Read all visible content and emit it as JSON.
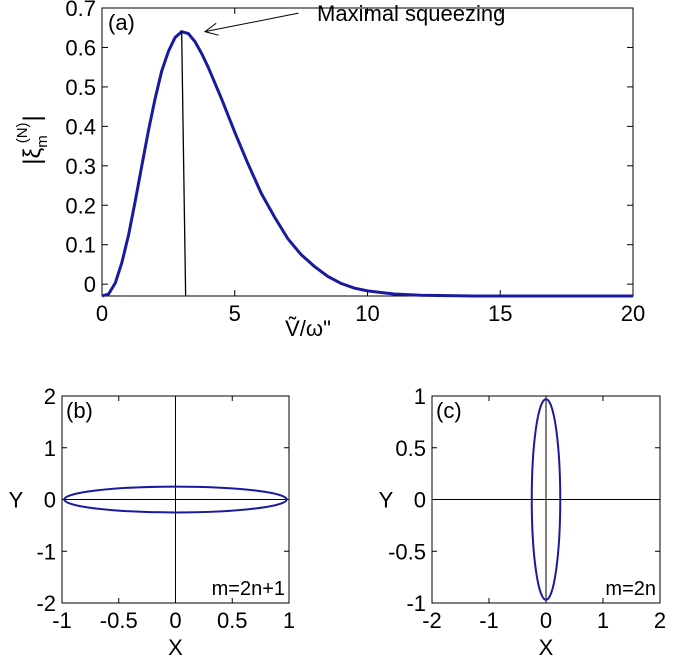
{
  "colors": {
    "curve": "#1a1a9e",
    "axis": "#000000",
    "background": "#ffffff"
  },
  "chart_data": [
    {
      "id": "a",
      "type": "line",
      "panel_label": "(a)",
      "xlabel": "Ṽ/ω\"",
      "ylabel_main": "|ξ",
      "ylabel_sup": "(N)",
      "ylabel_sub": "m",
      "ylabel_close": "|",
      "xlim": [
        0,
        20
      ],
      "ylim": [
        -0.03,
        0.7
      ],
      "xticks": [
        0,
        5,
        10,
        15,
        20
      ],
      "xtick_labels": [
        "0",
        "5",
        "10",
        "15",
        "20"
      ],
      "yticks": [
        0,
        0.1,
        0.2,
        0.3,
        0.4,
        0.5,
        0.6,
        0.7
      ],
      "ytick_labels": [
        "0",
        "0.1",
        "0.2",
        "0.3",
        "0.4",
        "0.5",
        "0.6",
        "0.7"
      ],
      "series": [
        {
          "x": [
            0,
            0.25,
            0.5,
            0.75,
            1.0,
            1.25,
            1.5,
            1.75,
            2.0,
            2.25,
            2.5,
            2.75,
            3.0,
            3.25,
            3.5,
            3.75,
            4.0,
            4.5,
            5.0,
            5.5,
            6.0,
            6.5,
            7.0,
            7.5,
            8.0,
            8.5,
            9.0,
            9.5,
            10,
            11,
            12,
            13,
            14,
            15,
            16,
            17,
            18,
            19,
            20
          ],
          "y": [
            -0.03,
            -0.025,
            0.003,
            0.055,
            0.125,
            0.21,
            0.3,
            0.39,
            0.47,
            0.54,
            0.59,
            0.625,
            0.64,
            0.635,
            0.615,
            0.585,
            0.55,
            0.47,
            0.385,
            0.305,
            0.23,
            0.17,
            0.115,
            0.075,
            0.045,
            0.02,
            0.002,
            -0.01,
            -0.017,
            -0.025,
            -0.028,
            -0.029,
            -0.03,
            -0.03,
            -0.03,
            -0.03,
            -0.03,
            -0.03,
            -0.03
          ]
        }
      ],
      "vline": {
        "x_top": 3.0,
        "y_top": 0.64,
        "x_bottom": 3.15,
        "y_bottom": -0.03
      },
      "annotation": {
        "text": "Maximal squeezing",
        "arrow_to": [
          3.05,
          0.64
        ],
        "arrow_from": [
          7.4,
          0.687
        ],
        "text_at": [
          8.1,
          0.687
        ]
      }
    },
    {
      "id": "b",
      "type": "line",
      "panel_label": "(b)",
      "corner_label": "m=2n+1",
      "xlabel": "X",
      "ylabel": "Y",
      "xlim": [
        -1,
        1
      ],
      "ylim": [
        -2,
        2
      ],
      "xticks": [
        -1,
        -0.5,
        0,
        0.5,
        1
      ],
      "xtick_labels": [
        "-1",
        "-0.5",
        "0",
        "0.5",
        "1"
      ],
      "yticks": [
        -2,
        -1,
        0,
        1,
        2
      ],
      "ytick_labels": [
        "-2",
        "-1",
        "0",
        "1",
        "2"
      ],
      "ellipse": {
        "cx": 0,
        "cy": 0,
        "rx": 0.98,
        "ry": 0.25
      }
    },
    {
      "id": "c",
      "type": "line",
      "panel_label": "(c)",
      "corner_label": "m=2n",
      "xlabel": "X",
      "ylabel": "Y",
      "xlim": [
        -2,
        2
      ],
      "ylim": [
        -1,
        1
      ],
      "xticks": [
        -2,
        -1,
        0,
        1,
        2
      ],
      "xtick_labels": [
        "-2",
        "-1",
        "0",
        "1",
        "2"
      ],
      "yticks": [
        -1,
        -0.5,
        0,
        0.5,
        1
      ],
      "ytick_labels": [
        "-1",
        "-0.5",
        "0",
        "0.5",
        "1"
      ],
      "ellipse": {
        "cx": 0,
        "cy": 0,
        "rx": 0.25,
        "ry": 0.97
      }
    }
  ]
}
